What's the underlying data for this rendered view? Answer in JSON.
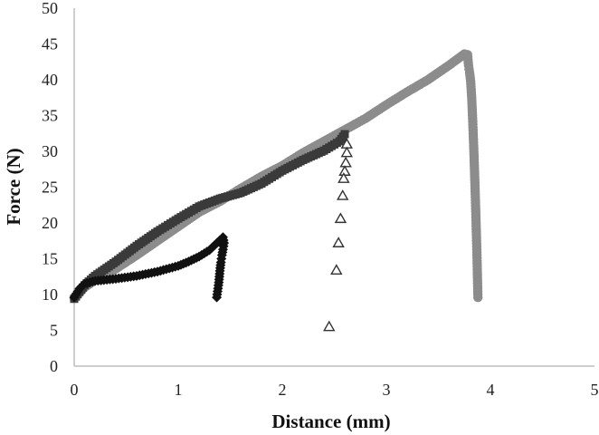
{
  "chart_data": {
    "type": "scatter",
    "title": "",
    "xlabel": "Distance (mm)",
    "ylabel": "Force (N)",
    "xlim": [
      0,
      5
    ],
    "ylim": [
      0,
      50
    ],
    "xticks": [
      "0",
      "1",
      "2",
      "3",
      "4",
      "5"
    ],
    "yticks": [
      "0",
      "5",
      "10",
      "15",
      "20",
      "25",
      "30",
      "35",
      "40",
      "45",
      "50"
    ],
    "grid": false,
    "legend": "none",
    "series": [
      {
        "marker": "circle",
        "color": "#8c8c8c",
        "points": [
          [
            0.0,
            9.5
          ],
          [
            0.1,
            11.0
          ],
          [
            0.2,
            12.0
          ],
          [
            0.4,
            13.6
          ],
          [
            0.6,
            15.5
          ],
          [
            0.8,
            17.5
          ],
          [
            1.0,
            19.5
          ],
          [
            1.2,
            21.5
          ],
          [
            1.4,
            23.0
          ],
          [
            1.6,
            24.8
          ],
          [
            1.8,
            26.5
          ],
          [
            2.0,
            28.0
          ],
          [
            2.2,
            29.8
          ],
          [
            2.4,
            31.4
          ],
          [
            2.6,
            33.0
          ],
          [
            2.8,
            34.6
          ],
          [
            3.0,
            36.5
          ],
          [
            3.2,
            38.3
          ],
          [
            3.4,
            40.0
          ],
          [
            3.6,
            42.0
          ],
          [
            3.75,
            43.6
          ],
          [
            3.78,
            43.5
          ],
          [
            3.79,
            42.0
          ],
          [
            3.8,
            41.0
          ],
          [
            3.81,
            39.8
          ],
          [
            3.82,
            37.5
          ],
          [
            3.83,
            34.2
          ],
          [
            3.84,
            30.4
          ],
          [
            3.85,
            26.0
          ],
          [
            3.86,
            21.2
          ],
          [
            3.87,
            15.9
          ],
          [
            3.88,
            9.6
          ]
        ]
      },
      {
        "marker": "square",
        "color": "#3a3a3a",
        "points": [
          [
            0.0,
            9.4
          ],
          [
            0.1,
            11.3
          ],
          [
            0.2,
            12.6
          ],
          [
            0.4,
            14.6
          ],
          [
            0.6,
            16.8
          ],
          [
            0.8,
            18.8
          ],
          [
            1.0,
            20.6
          ],
          [
            1.2,
            22.3
          ],
          [
            1.4,
            23.4
          ],
          [
            1.5,
            23.8
          ],
          [
            1.6,
            24.2
          ],
          [
            1.8,
            25.5
          ],
          [
            2.0,
            27.3
          ],
          [
            2.2,
            28.8
          ],
          [
            2.4,
            30.1
          ],
          [
            2.55,
            31.4
          ],
          [
            2.6,
            32.4
          ]
        ]
      },
      {
        "marker": "triangle-open",
        "color": "#333333",
        "points": [
          [
            2.62,
            31.0
          ],
          [
            2.62,
            29.8
          ],
          [
            2.61,
            28.4
          ],
          [
            2.6,
            27.2
          ],
          [
            2.59,
            26.2
          ],
          [
            2.58,
            23.8
          ],
          [
            2.56,
            20.6
          ],
          [
            2.54,
            17.2
          ],
          [
            2.52,
            13.4
          ],
          [
            2.45,
            5.5
          ]
        ]
      },
      {
        "marker": "diamond",
        "color": "#111111",
        "points": [
          [
            0.0,
            9.6
          ],
          [
            0.05,
            10.8
          ],
          [
            0.1,
            11.5
          ],
          [
            0.2,
            11.9
          ],
          [
            0.4,
            12.2
          ],
          [
            0.6,
            12.6
          ],
          [
            0.8,
            13.2
          ],
          [
            1.0,
            14.0
          ],
          [
            1.1,
            14.6
          ],
          [
            1.2,
            15.3
          ],
          [
            1.3,
            16.2
          ],
          [
            1.35,
            16.9
          ],
          [
            1.4,
            17.6
          ],
          [
            1.43,
            18.0
          ],
          [
            1.44,
            17.2
          ],
          [
            1.43,
            16.3
          ],
          [
            1.42,
            15.5
          ],
          [
            1.41,
            14.5
          ],
          [
            1.4,
            13.3
          ],
          [
            1.39,
            11.7
          ],
          [
            1.37,
            9.6
          ]
        ]
      }
    ]
  }
}
